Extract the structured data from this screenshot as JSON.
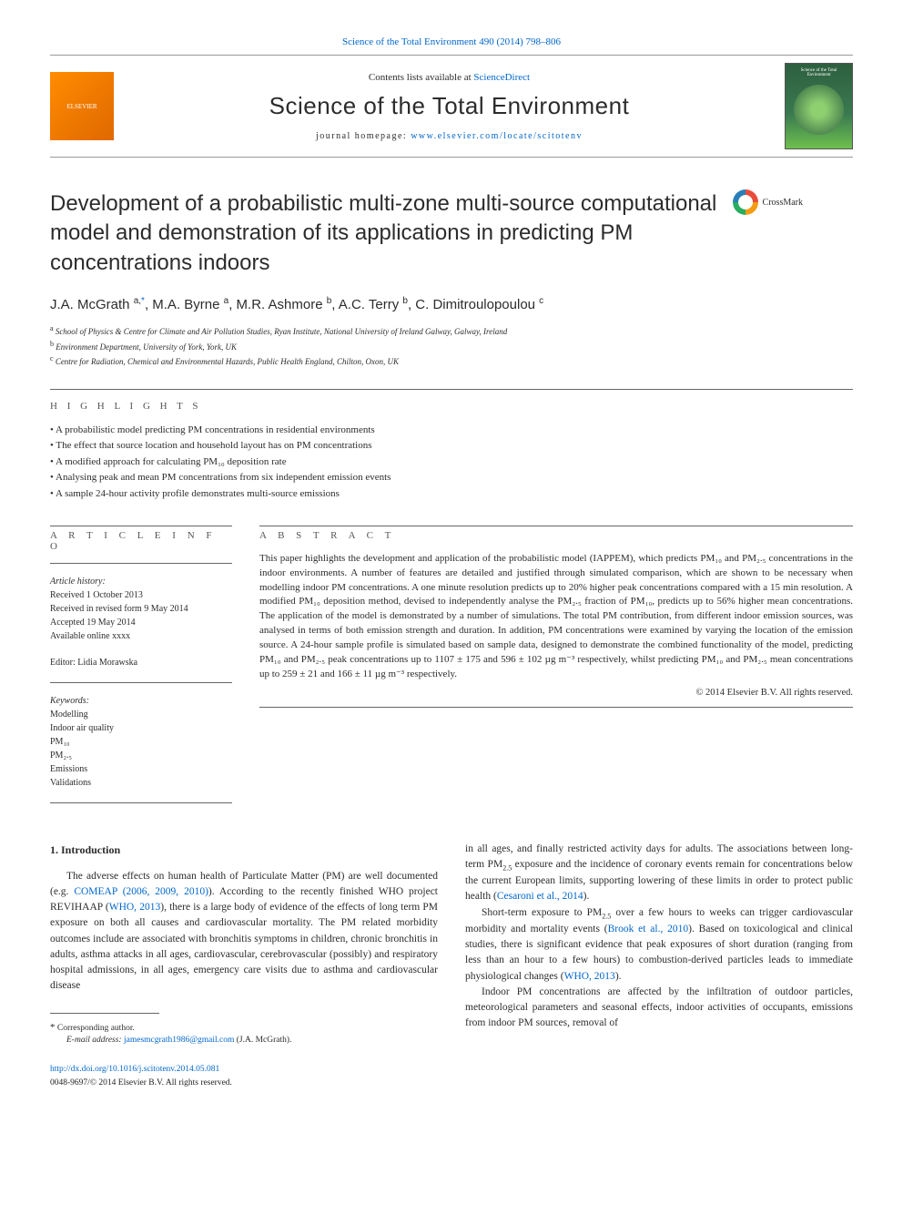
{
  "topLink": "Science of the Total Environment 490 (2014) 798–806",
  "header": {
    "contentsPrefix": "Contents lists available at ",
    "contentsLink": "ScienceDirect",
    "journalName": "Science of the Total Environment",
    "homepagePrefix": "journal homepage: ",
    "homepageUrl": "www.elsevier.com/locate/scitotenv",
    "elsevierText": "ELSEVIER",
    "coverTitle": "Science of the Total Environment"
  },
  "article": {
    "title": "Development of a probabilistic multi-zone multi-source computational model and demonstration of its applications in predicting PM concentrations indoors",
    "crossmarkLabel": "CrossMark",
    "authorsHtml": "J.A. McGrath <sup>a,</sup><sup class=\"star\">*</sup>, M.A. Byrne <sup>a</sup>, M.R. Ashmore <sup>b</sup>, A.C. Terry <sup>b</sup>, C. Dimitroulopoulou <sup>c</sup>",
    "affiliations": [
      {
        "sup": "a",
        "text": "School of Physics & Centre for Climate and Air Pollution Studies, Ryan Institute, National University of Ireland Galway, Galway, Ireland"
      },
      {
        "sup": "b",
        "text": "Environment Department, University of York, York, UK"
      },
      {
        "sup": "c",
        "text": "Centre for Radiation, Chemical and Environmental Hazards, Public Health England, Chilton, Oxon, UK"
      }
    ]
  },
  "highlights": {
    "label": "H I G H L I G H T S",
    "items": [
      "A probabilistic model predicting PM concentrations in residential environments",
      "The effect that source location and household layout has on PM concentrations",
      "A modified approach for calculating PM₁₀ deposition rate",
      "Analysing peak and mean PM concentrations from six independent emission events",
      "A sample 24-hour activity profile demonstrates multi-source emissions"
    ]
  },
  "articleInfo": {
    "label": "A R T I C L E    I N F O",
    "historyLabel": "Article history:",
    "history": [
      "Received 1 October 2013",
      "Received in revised form 9 May 2014",
      "Accepted 19 May 2014",
      "Available online xxxx"
    ],
    "editorLabel": "Editor: Lidia Morawska",
    "keywordsLabel": "Keywords:",
    "keywords": [
      "Modelling",
      "Indoor air quality",
      "PM₁₀",
      "PM₂.₅",
      "Emissions",
      "Validations"
    ]
  },
  "abstract": {
    "label": "A B S T R A C T",
    "text": "This paper highlights the development and application of the probabilistic model (IAPPEM), which predicts PM₁₀ and PM₂.₅ concentrations in the indoor environments. A number of features are detailed and justified through simulated comparison, which are shown to be necessary when modelling indoor PM concentrations. A one minute resolution predicts up to 20% higher peak concentrations compared with a 15 min resolution. A modified PM₁₀ deposition method, devised to independently analyse the PM₂.₅ fraction of PM₁₀, predicts up to 56% higher mean concentrations. The application of the model is demonstrated by a number of simulations. The total PM contribution, from different indoor emission sources, was analysed in terms of both emission strength and duration. In addition, PM concentrations were examined by varying the location of the emission source. A 24-hour sample profile is simulated based on sample data, designed to demonstrate the combined functionality of the model, predicting PM₁₀ and PM₂.₅ peak concentrations up to 1107 ± 175 and 596 ± 102 µg m⁻³ respectively, whilst predicting PM₁₀ and PM₂.₅ mean concentrations up to 259 ± 21 and 166 ± 11 µg m⁻³ respectively.",
    "copyright": "© 2014 Elsevier B.V. All rights reserved."
  },
  "body": {
    "heading": "1. Introduction",
    "col1p1": "The adverse effects on human health of Particulate Matter (PM) are well documented (e.g. COMEAP (2006, 2009, 2010)). According to the recently finished WHO project REVIHAAP (WHO, 2013), there is a large body of evidence of the effects of long term PM exposure on both all causes and cardiovascular mortality. The PM related morbidity outcomes include are associated with bronchitis symptoms in children, chronic bronchitis in adults, asthma attacks in all ages, cardiovascular, cerebrovascular (possibly) and respiratory hospital admissions, in all ages, emergency care visits due to asthma and cardiovascular disease",
    "col2p1": "in all ages, and finally restricted activity days for adults. The associations between long-term PM₂.₅ exposure and the incidence of coronary events remain for concentrations below the current European limits, supporting lowering of these limits in order to protect public health (Cesaroni et al., 2014).",
    "col2p2": "Short-term exposure to PM₂.₅ over a few hours to weeks can trigger cardiovascular morbidity and mortality events (Brook et al., 2010). Based on toxicological and clinical studies, there is significant evidence that peak exposures of short duration (ranging from less than an hour to a few hours) to combustion-derived particles leads to immediate physiological changes (WHO, 2013).",
    "col2p3": "Indoor PM concentrations are affected by the infiltration of outdoor particles, meteorological parameters and seasonal effects, indoor activities of occupants, emissions from indoor PM sources, removal of"
  },
  "footnote": {
    "corrLabel": "Corresponding author.",
    "emailLabel": "E-mail address:",
    "email": "jamesmcgrath1986@gmail.com",
    "emailSuffix": "(J.A. McGrath)."
  },
  "doi": {
    "link": "http://dx.doi.org/10.1016/j.scitotenv.2014.05.081",
    "issn": "0048-9697/© 2014 Elsevier B.V. All rights reserved."
  },
  "colors": {
    "link": "#0066cc",
    "text": "#2c2c2c",
    "rule": "#666666"
  }
}
